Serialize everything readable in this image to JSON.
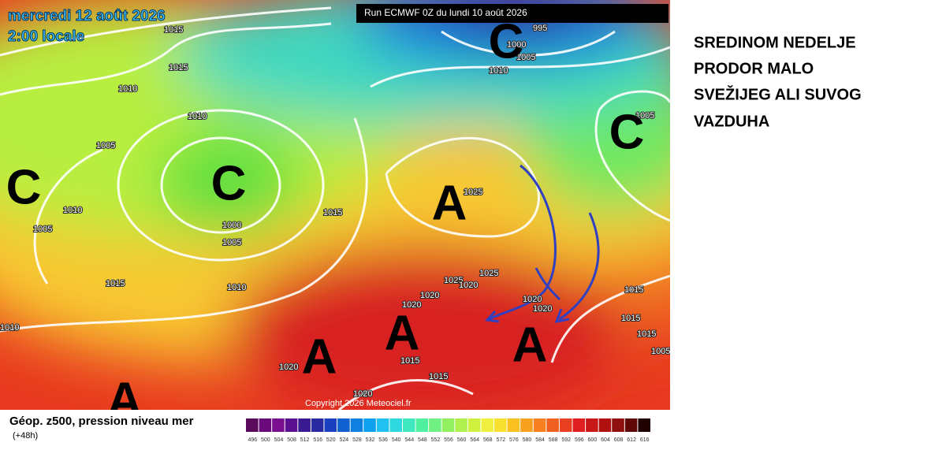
{
  "header": {
    "date": "mercredi 12 août 2026",
    "time": "2:00 locale",
    "run": "Run ECMWF 0Z du lundi 10 août 2026"
  },
  "annotation": {
    "lines": [
      "SREDINOM NEDELJE",
      "PRODOR MALO",
      "SVEŽIJEG ALI SUVOG",
      "VAZDUHA"
    ]
  },
  "systems": [
    "C",
    "C",
    "C",
    "C",
    "A",
    "A",
    "A",
    "A",
    "A"
  ],
  "pressure_labels": [
    1015,
    1015,
    1010,
    1010,
    1005,
    1010,
    1005,
    1000,
    1005,
    1015,
    1015,
    1010,
    1010,
    1020,
    1015,
    1015,
    1020,
    1025,
    1025,
    1025,
    1020,
    1020,
    1020,
    1020,
    1020,
    995,
    1000,
    1005,
    1010,
    1005,
    1015,
    1015,
    1015,
    1005
  ],
  "copyright": "Copyright 2026 Meteociel.fr",
  "legend": {
    "title": "Géop. z500, pression niveau mer",
    "lead": "(+48h)",
    "scale": [
      496,
      500,
      504,
      508,
      512,
      516,
      520,
      524,
      528,
      532,
      536,
      540,
      544,
      548,
      552,
      556,
      560,
      564,
      568,
      572,
      576,
      580,
      584,
      588,
      592,
      596,
      600,
      604,
      608,
      612,
      616
    ],
    "colors": [
      "#5a0a5a",
      "#6a0a7a",
      "#7a1090",
      "#5a1090",
      "#3a1a90",
      "#2a2aa0",
      "#1a40c0",
      "#1060d0",
      "#1080e0",
      "#10a0f0",
      "#20c0f0",
      "#30d8e0",
      "#40e8c0",
      "#50f0a0",
      "#70f080",
      "#90f060",
      "#b0f050",
      "#d0f040",
      "#f0f040",
      "#f8e030",
      "#f8c020",
      "#f8a020",
      "#f88020",
      "#f06020",
      "#e84020",
      "#e02020",
      "#c81818",
      "#b01010",
      "#901010",
      "#600808",
      "#200000"
    ]
  }
}
